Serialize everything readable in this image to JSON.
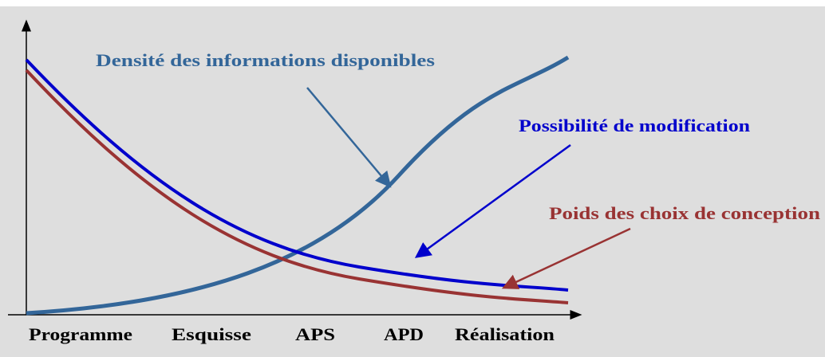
{
  "curves": [
    {
      "label": "Densité des informations disponibles"
    },
    {
      "label": "Possibilité de modification"
    },
    {
      "label": "Poids des choix de conception"
    }
  ],
  "phases": [
    "Programme",
    "Esquisse",
    "APS",
    "APD",
    "Réalisation"
  ]
}
